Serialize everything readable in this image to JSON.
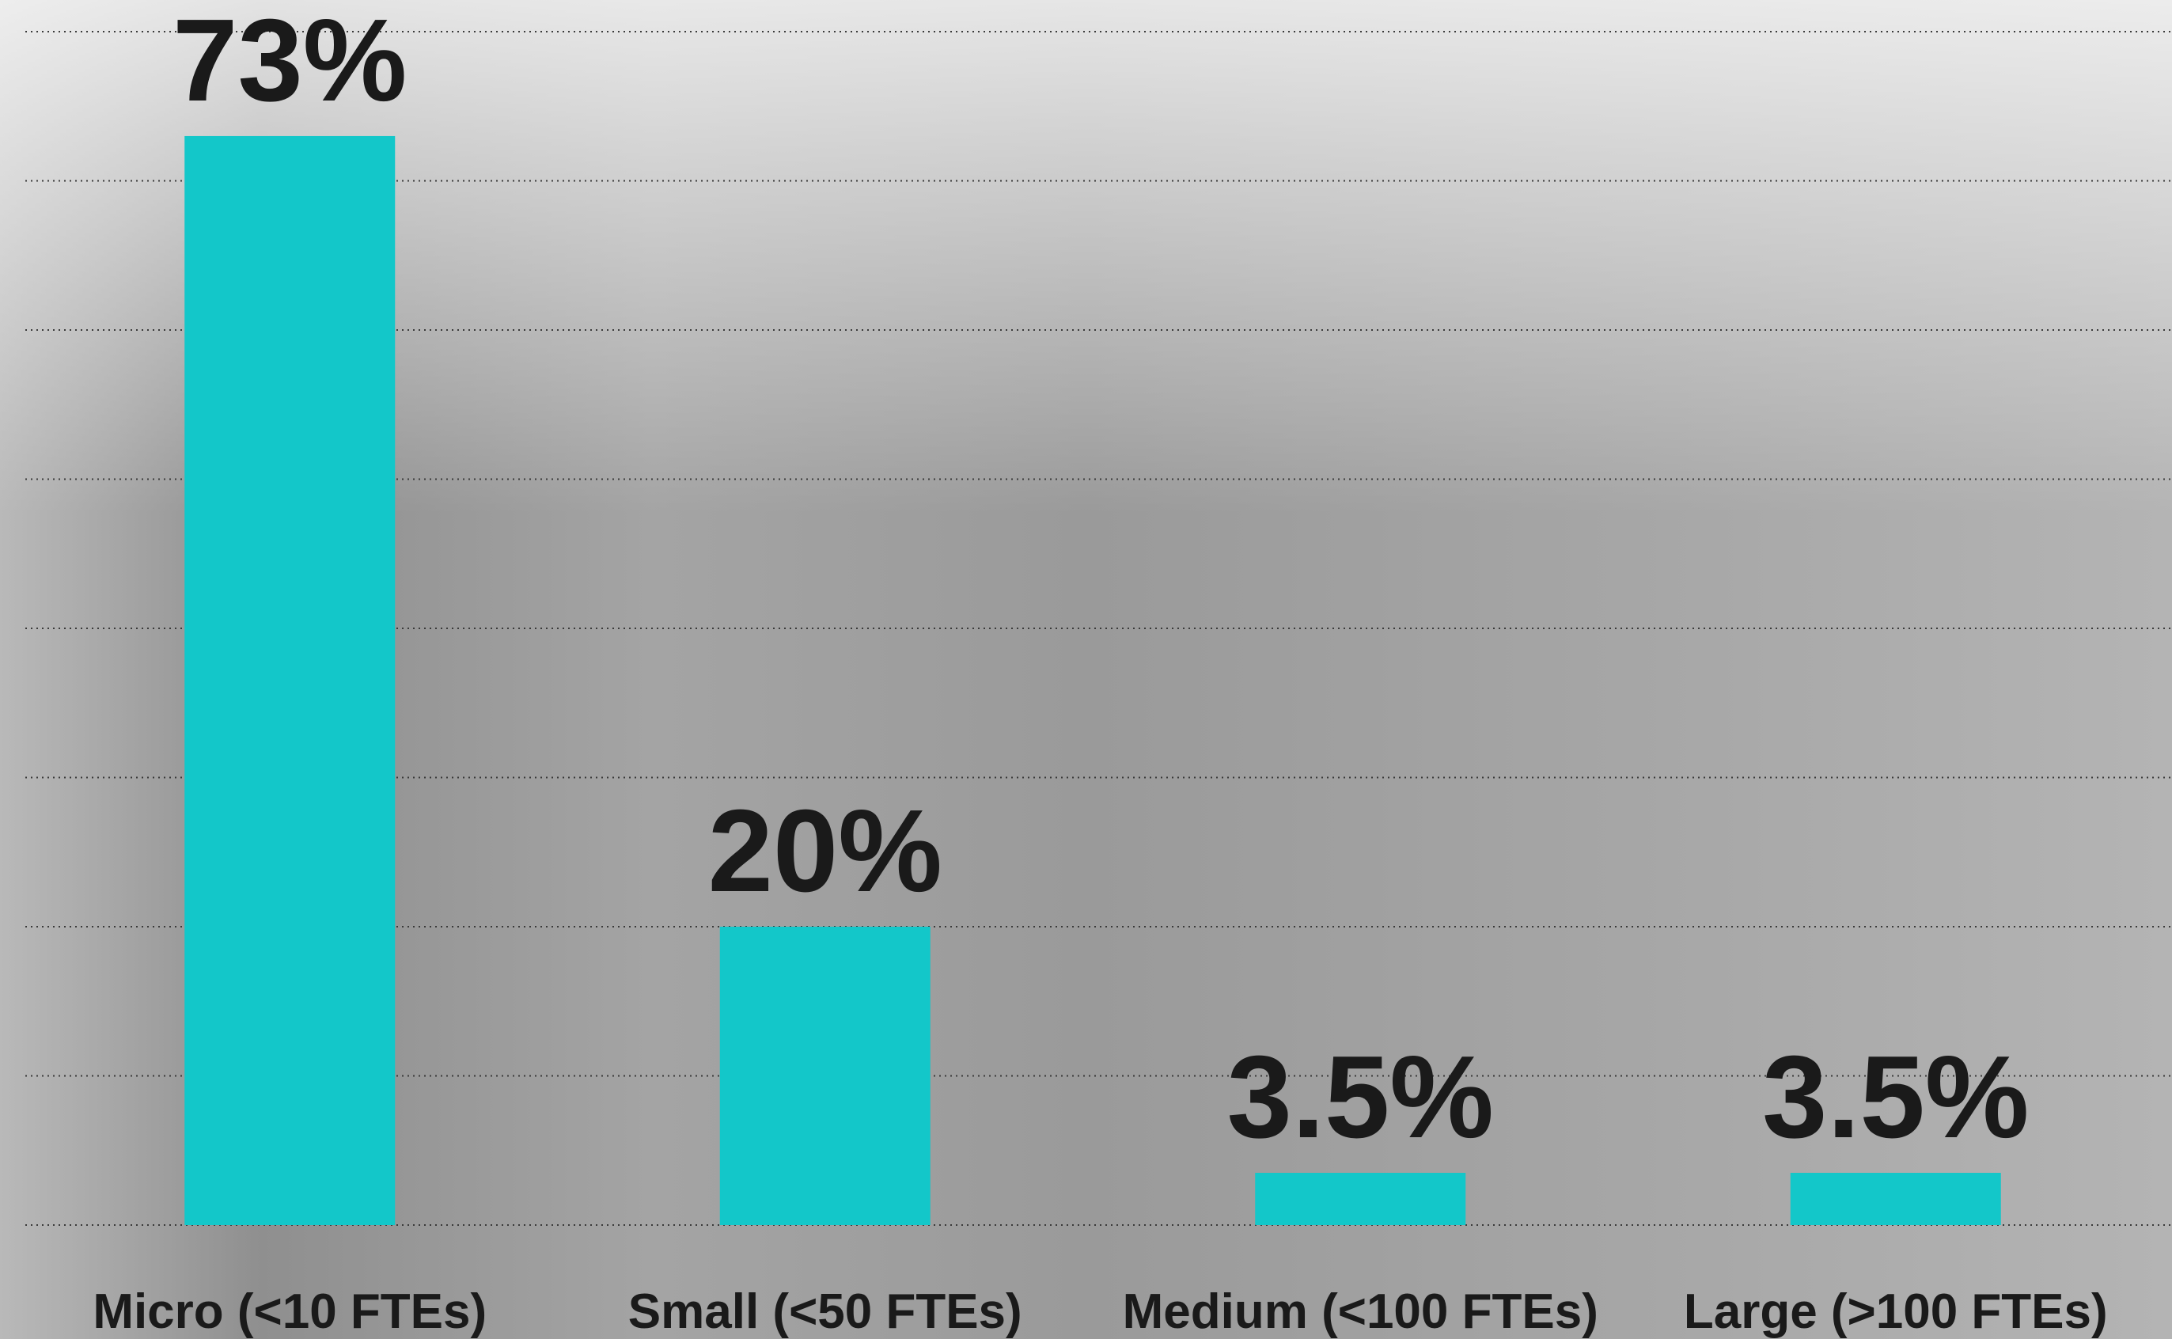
{
  "chart_data": {
    "type": "bar",
    "categories": [
      "Micro (<10 FTEs)",
      "Small (<50 FTEs)",
      "Medium (<100 FTEs)",
      "Large (>100 FTEs)"
    ],
    "values": [
      73,
      20,
      3.5,
      3.5
    ],
    "value_labels": [
      "73%",
      "20%",
      "3.5%",
      "3.5%"
    ],
    "color": "#13c7c9",
    "ylim": [
      0,
      80
    ],
    "yticks": [
      0,
      10,
      20,
      30,
      40,
      50,
      60,
      70,
      80
    ],
    "grid": true
  }
}
